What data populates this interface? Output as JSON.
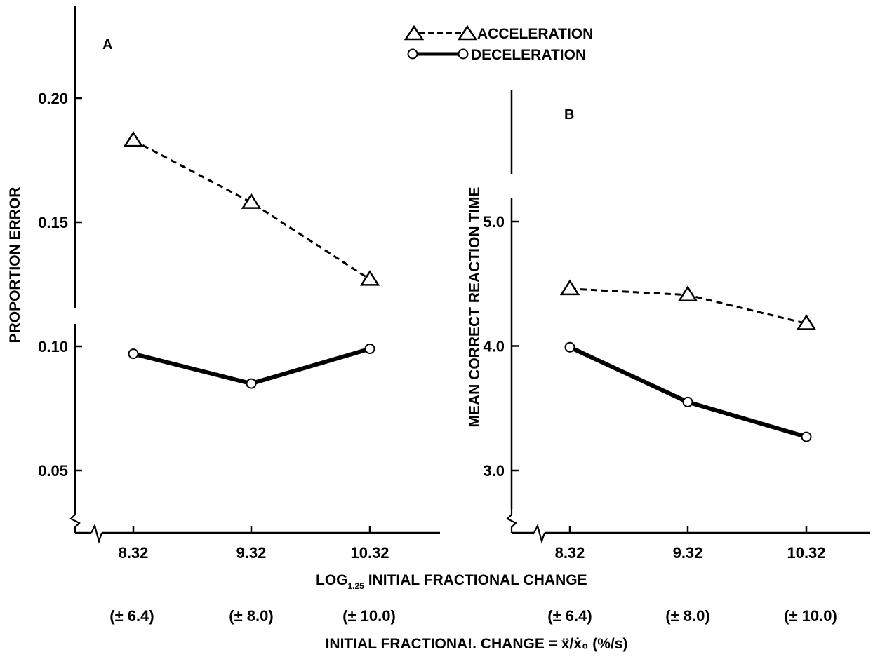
{
  "legend": [
    {
      "label": "ACCELERATION",
      "marker": "triangle",
      "line": "dashed"
    },
    {
      "label": "DECELERATION",
      "marker": "circle",
      "line": "solid"
    }
  ],
  "x_axis": {
    "xlabel": "LOG",
    "xlabel_sub": "1.25",
    "xlabel_rest": " INITIAL FRACTIONAL CHANGE",
    "categories": [
      "8.32",
      "9.32",
      "10.32"
    ],
    "secondary_labels": [
      "(± 6.4)",
      "(± 8.0)",
      "(± 10.0)"
    ],
    "secondary_title": "INITIAL FRACTIONA!. CHANGE = ẍ/ẋ₀ (%/s)"
  },
  "chart_data": [
    {
      "type": "line",
      "panel_label": "A",
      "ylabel": "PROPORTION ERROR",
      "categories": [
        "8.32",
        "9.32",
        "10.32"
      ],
      "yticks": [
        "0.05",
        "0.10",
        "0.15",
        "0.20"
      ],
      "ylim": [
        0.025,
        0.225
      ],
      "axis_break": true,
      "series": [
        {
          "name": "ACCELERATION",
          "values": [
            0.183,
            0.158,
            0.127
          ],
          "style": "dashed",
          "marker": "triangle"
        },
        {
          "name": "DECELERATION",
          "values": [
            0.097,
            0.085,
            0.099
          ],
          "style": "solid",
          "marker": "circle"
        }
      ]
    },
    {
      "type": "line",
      "panel_label": "B",
      "ylabel": "MEAN CORRECT REACTION TIME",
      "categories": [
        "8.32",
        "9.32",
        "10.32"
      ],
      "yticks": [
        "3.0",
        "4.0",
        "5.0"
      ],
      "ylim": [
        2.6,
        5.9
      ],
      "axis_break": true,
      "series": [
        {
          "name": "ACCELERATION",
          "values": [
            4.46,
            4.41,
            4.18
          ],
          "style": "dashed",
          "marker": "triangle"
        },
        {
          "name": "DECELERATION",
          "values": [
            3.99,
            3.55,
            3.27
          ],
          "style": "solid",
          "marker": "circle"
        }
      ]
    }
  ]
}
